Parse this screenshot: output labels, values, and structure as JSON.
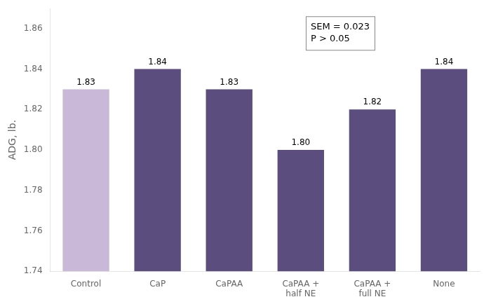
{
  "chart_data": {
    "type": "bar",
    "categories": [
      "Control",
      "CaP",
      "CaPAA",
      "CaPAA +\nhalf NE",
      "CaPAA +\nfull NE",
      "None"
    ],
    "values": [
      1.83,
      1.84,
      1.83,
      1.8,
      1.82,
      1.84
    ],
    "value_labels": [
      "1.83",
      "1.84",
      "1.83",
      "1.80",
      "1.82",
      "1.84"
    ],
    "colors": [
      "#c9b8d8",
      "#5b4e7e",
      "#5b4e7e",
      "#5b4e7e",
      "#5b4e7e",
      "#5b4e7e"
    ],
    "ylabel": "ADG, lb.",
    "ylim": [
      1.74,
      1.87
    ],
    "yticks": [
      1.74,
      1.76,
      1.78,
      {
        "value": 1.8,
        "label": "1.80"
      },
      1.82,
      1.84,
      1.86
    ],
    "annotations": [
      "SEM = 0.023",
      "P > 0.05"
    ],
    "data_labels": true,
    "grid": false
  }
}
